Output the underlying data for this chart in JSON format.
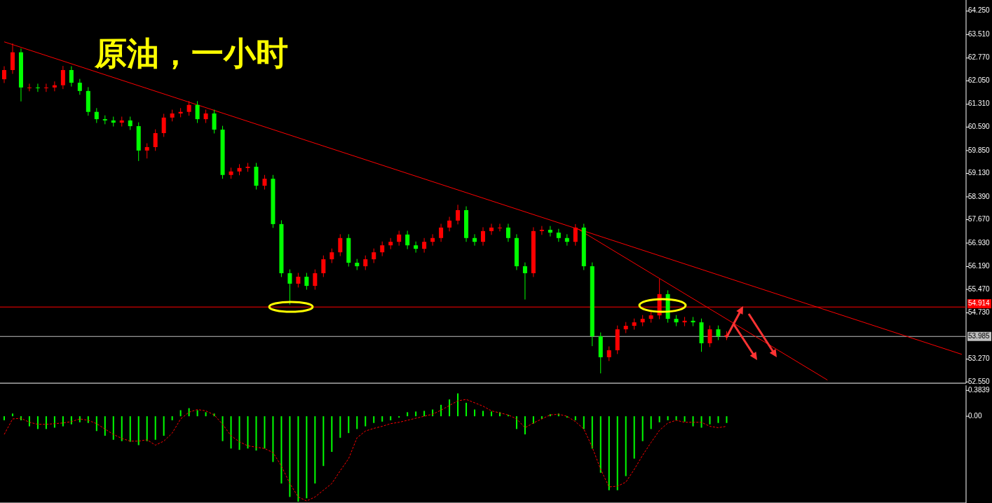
{
  "chart_data": [
    {
      "type": "candlestick",
      "title": "原油，一小时",
      "categories": [
        null,
        null,
        null,
        null,
        null,
        null,
        null,
        null,
        null,
        null,
        null,
        null,
        null,
        null,
        null,
        null,
        null,
        null,
        null,
        null,
        null,
        null,
        null,
        null,
        null,
        null,
        null,
        null,
        null,
        null,
        null,
        null,
        null,
        null,
        null,
        null,
        null,
        null,
        null,
        null,
        null,
        null,
        null,
        null,
        null,
        null,
        null,
        null,
        null,
        null,
        null,
        null,
        null,
        null,
        null,
        null,
        null,
        null,
        null,
        null,
        null,
        null,
        null,
        null,
        null,
        null,
        null,
        null,
        null,
        null,
        null,
        null,
        null,
        null,
        null,
        null,
        null,
        null,
        null,
        null,
        null,
        null,
        null,
        null,
        null,
        null,
        null,
        null,
        null,
        null,
        null,
        null,
        null,
        null,
        null,
        null,
        null,
        null,
        null,
        null,
        null,
        null,
        null,
        null,
        null,
        null,
        null,
        null,
        null,
        null,
        null,
        null,
        null,
        null,
        null
      ],
      "colors": [
        "#ff0000",
        "#ff0000",
        "#00ff00",
        "#ff0000",
        "#00ff00",
        "#ff0000",
        "#ff0000",
        "#ff0000",
        "#00ff00",
        "#00ff00",
        "#00ff00",
        "#00ff00",
        "#00ff00",
        "#00ff00",
        "#ff0000",
        "#00ff00",
        "#00ff00",
        "#ff0000",
        "#ff0000",
        "#ff0000",
        "#ff0000",
        "#ff0000",
        "#ff0000",
        "#00ff00",
        "#ff0000",
        "#00ff00",
        "#00ff00",
        "#ff0000",
        "#ff0000",
        "#ff0000",
        "#00ff00",
        "#ff0000",
        "#00ff00",
        "#00ff00",
        "#00ff00",
        "#ff0000",
        "#00ff00",
        "#ff0000",
        "#ff0000",
        "#ff0000",
        "#ff0000",
        "#00ff00",
        "#00ff00",
        "#ff0000",
        "#ff0000",
        "#ff0000",
        "#ff0000",
        "#ff0000",
        "#00ff00",
        "#00ff00",
        "#ff0000",
        "#ff0000",
        "#ff0000",
        "#ff0000",
        "#ff0000",
        "#00ff00",
        "#00ff00",
        "#ff0000",
        "#ff0000",
        "#ff0000",
        "#00ff00",
        "#00ff00",
        "#00ff00",
        "#ff0000",
        "#ff0000",
        "#00ff00",
        "#00ff00",
        "#00ff00",
        "#ff0000",
        "#00ff00",
        "#00ff00",
        "#00ff00",
        "#ff0000",
        "#ff0000",
        "#ff0000",
        "#ff0000",
        "#ff0000",
        "#ff0000",
        "#ff0000",
        "#00ff00",
        "#00ff00",
        "#ff0000",
        "#00ff00",
        "#00ff00",
        "#ff0000",
        "#00ff00",
        "#ff0000",
        null,
        null,
        null,
        null,
        null,
        null,
        null,
        null,
        null,
        null,
        null,
        null,
        null,
        null,
        null,
        null,
        null,
        null,
        null,
        null,
        null,
        null,
        null,
        null,
        null,
        null,
        null,
        null
      ],
      "ohlc": [
        [
          62.1,
          62.51,
          61.98,
          62.39
        ],
        [
          62.39,
          63.23,
          62.27,
          62.95
        ],
        [
          62.95,
          63.07,
          61.4,
          61.84
        ],
        [
          61.84,
          61.96,
          61.72,
          61.84
        ],
        [
          61.84,
          61.96,
          61.7,
          61.82
        ],
        [
          61.82,
          61.96,
          61.7,
          61.84
        ],
        [
          61.84,
          62.03,
          61.72,
          61.91
        ],
        [
          61.91,
          62.52,
          61.79,
          62.39
        ],
        [
          62.39,
          62.51,
          61.87,
          61.99
        ],
        [
          61.99,
          62.11,
          61.61,
          61.73
        ],
        [
          61.73,
          61.85,
          60.95,
          61.07
        ],
        [
          61.07,
          61.19,
          60.72,
          60.84
        ],
        [
          60.84,
          60.96,
          60.68,
          60.8
        ],
        [
          60.8,
          60.92,
          60.61,
          60.73
        ],
        [
          60.73,
          60.92,
          60.61,
          60.8
        ],
        [
          60.8,
          60.92,
          60.5,
          60.62
        ],
        [
          60.62,
          60.74,
          59.52,
          59.85
        ],
        [
          59.85,
          60.08,
          59.6,
          59.96
        ],
        [
          59.96,
          60.52,
          59.84,
          60.4
        ],
        [
          60.4,
          61.01,
          60.28,
          60.89
        ],
        [
          60.89,
          61.14,
          60.77,
          61.02
        ],
        [
          61.02,
          61.19,
          60.9,
          61.07
        ],
        [
          61.07,
          61.41,
          60.95,
          61.29
        ],
        [
          61.29,
          61.41,
          60.72,
          60.84
        ],
        [
          60.84,
          61.14,
          60.72,
          61.02
        ],
        [
          61.02,
          61.14,
          60.39,
          60.51
        ],
        [
          60.51,
          60.63,
          58.96,
          59.08
        ],
        [
          59.08,
          59.31,
          58.96,
          59.19
        ],
        [
          59.19,
          59.42,
          59.07,
          59.3
        ],
        [
          59.3,
          59.46,
          59.18,
          59.34
        ],
        [
          59.34,
          59.46,
          58.62,
          58.74
        ],
        [
          58.74,
          59.08,
          58.62,
          58.96
        ],
        [
          58.96,
          59.08,
          57.41,
          57.53
        ],
        [
          57.53,
          57.65,
          55.86,
          55.98
        ],
        [
          55.98,
          56.1,
          54.99,
          55.65
        ],
        [
          55.65,
          55.99,
          55.53,
          55.87
        ],
        [
          55.87,
          55.99,
          55.46,
          55.58
        ],
        [
          55.58,
          56.1,
          55.46,
          55.98
        ],
        [
          55.98,
          56.54,
          55.86,
          56.42
        ],
        [
          56.42,
          56.76,
          56.3,
          56.64
        ],
        [
          56.64,
          57.21,
          56.52,
          57.09
        ],
        [
          57.09,
          57.21,
          56.19,
          56.31
        ],
        [
          56.31,
          56.43,
          56.08,
          56.2
        ],
        [
          56.2,
          56.54,
          56.08,
          56.42
        ],
        [
          56.42,
          56.76,
          56.3,
          56.64
        ],
        [
          56.64,
          56.98,
          56.52,
          56.86
        ],
        [
          56.86,
          57.09,
          56.74,
          56.97
        ],
        [
          56.97,
          57.32,
          56.85,
          57.2
        ],
        [
          57.2,
          57.32,
          56.74,
          56.86
        ],
        [
          56.86,
          56.98,
          56.63,
          56.75
        ],
        [
          56.75,
          57.09,
          56.63,
          56.97
        ],
        [
          56.97,
          57.21,
          56.85,
          57.09
        ],
        [
          57.09,
          57.54,
          56.97,
          57.42
        ],
        [
          57.42,
          57.76,
          57.3,
          57.64
        ],
        [
          57.64,
          58.14,
          57.52,
          57.97
        ],
        [
          57.97,
          58.09,
          56.97,
          57.09
        ],
        [
          57.09,
          57.21,
          56.85,
          56.97
        ],
        [
          56.97,
          57.43,
          56.85,
          57.31
        ],
        [
          57.31,
          57.54,
          57.19,
          57.42
        ],
        [
          57.42,
          57.54,
          57.3,
          57.42
        ],
        [
          57.42,
          57.54,
          56.97,
          57.09
        ],
        [
          57.09,
          57.21,
          56.08,
          56.2
        ],
        [
          56.2,
          56.32,
          55.15,
          55.98
        ],
        [
          55.98,
          57.43,
          55.86,
          57.31
        ],
        [
          57.31,
          57.47,
          57.19,
          57.35
        ],
        [
          57.35,
          57.47,
          57.14,
          57.26
        ],
        [
          57.26,
          57.38,
          56.97,
          57.09
        ],
        [
          57.09,
          57.21,
          56.85,
          56.97
        ],
        [
          56.97,
          57.53,
          56.85,
          57.42
        ],
        [
          57.42,
          57.54,
          56.08,
          56.2
        ],
        [
          56.2,
          56.32,
          53.68,
          53.99
        ],
        [
          53.99,
          54.11,
          52.82,
          53.33
        ],
        [
          53.33,
          53.67,
          53.21,
          53.55
        ],
        [
          53.55,
          54.33,
          53.43,
          54.21
        ],
        [
          54.21,
          54.44,
          54.09,
          54.32
        ],
        [
          54.32,
          54.55,
          54.2,
          54.43
        ],
        [
          54.43,
          54.66,
          54.31,
          54.54
        ],
        [
          54.54,
          54.77,
          54.42,
          54.65
        ],
        [
          54.65,
          55.8,
          54.53,
          55.32
        ],
        [
          55.32,
          55.44,
          54.42,
          54.54
        ],
        [
          54.54,
          54.66,
          54.31,
          54.43
        ],
        [
          54.43,
          54.6,
          54.31,
          54.48
        ],
        [
          54.48,
          54.6,
          54.31,
          54.43
        ],
        [
          54.43,
          54.55,
          53.5,
          53.77
        ],
        [
          53.77,
          54.33,
          53.65,
          54.21
        ],
        [
          54.21,
          54.33,
          53.87,
          53.99
        ],
        [
          53.99,
          54.15,
          53.87,
          54.03
        ],
        null,
        null,
        null,
        null,
        null,
        null,
        null,
        null,
        null,
        null,
        null,
        null,
        null,
        null,
        null,
        null,
        null,
        null,
        null,
        null,
        null,
        null,
        null,
        null,
        null,
        null,
        null,
        null
      ],
      "series": [
        {
          "type": "line",
          "color": "#ff0000",
          "values": [
            63.28,
            null,
            null,
            null,
            null,
            null,
            null,
            null,
            null,
            null,
            null,
            null,
            null,
            null,
            null,
            null,
            null,
            null,
            null,
            null,
            null,
            null,
            null,
            null,
            null,
            null,
            null,
            null,
            null,
            null,
            null,
            null,
            null,
            null,
            null,
            null,
            null,
            null,
            null,
            null,
            null,
            null,
            null,
            null,
            null,
            null,
            null,
            null,
            null,
            null,
            null,
            null,
            null,
            null,
            null,
            null,
            null,
            null,
            null,
            null,
            null,
            null,
            null,
            null,
            null,
            null,
            null,
            null,
            null,
            null,
            null,
            null,
            null,
            null,
            null,
            null,
            null,
            null,
            null,
            null,
            null,
            null,
            null,
            null,
            null,
            null,
            null,
            null,
            null,
            null,
            null,
            null,
            null,
            null,
            null,
            null,
            null,
            null,
            null,
            null,
            null,
            null,
            null,
            null,
            null,
            null,
            null,
            null,
            null,
            null,
            null,
            null,
            null,
            null,
            53.42
          ]
        },
        {
          "type": "line",
          "color": "#ff0000",
          "values": [
            null,
            null,
            null,
            null,
            null,
            null,
            null,
            null,
            null,
            null,
            null,
            null,
            null,
            null,
            null,
            null,
            null,
            null,
            null,
            null,
            null,
            null,
            null,
            null,
            null,
            null,
            null,
            null,
            null,
            null,
            null,
            null,
            null,
            null,
            null,
            null,
            null,
            null,
            null,
            null,
            null,
            null,
            null,
            null,
            null,
            null,
            null,
            null,
            null,
            null,
            null,
            null,
            null,
            null,
            null,
            null,
            null,
            null,
            null,
            null,
            null,
            null,
            null,
            null,
            null,
            null,
            null,
            null,
            57.42,
            null,
            null,
            null,
            null,
            null,
            null,
            null,
            null,
            null,
            null,
            null,
            null,
            null,
            null,
            null,
            null,
            null,
            null,
            null,
            null,
            null,
            null,
            null,
            null,
            null,
            null,
            null,
            null,
            null,
            52.61,
            null,
            null,
            null,
            null,
            null,
            null,
            null,
            null,
            null,
            null,
            null,
            null,
            null,
            null,
            null,
            null
          ]
        }
      ],
      "ylim": [
        52.51,
        64.6
      ],
      "yticks": [
        {
          "value": 64.25,
          "label": "64.250"
        },
        {
          "value": 63.51,
          "label": "63.510"
        },
        {
          "value": 62.77,
          "label": "62.770"
        },
        {
          "value": 62.05,
          "label": "62.050"
        },
        {
          "value": 61.31,
          "label": "61.310"
        },
        {
          "value": 60.59,
          "label": "60.590"
        },
        {
          "value": 59.85,
          "label": "59.850"
        },
        {
          "value": 59.13,
          "label": "59.130"
        },
        {
          "value": 58.39,
          "label": "58.390"
        },
        {
          "value": 57.67,
          "label": "57.670"
        },
        {
          "value": 56.93,
          "label": "56.930"
        },
        {
          "value": 56.19,
          "label": "56.190"
        },
        {
          "value": 55.47,
          "label": "55.470"
        },
        {
          "value": 54.73,
          "label": "54.730"
        },
        {
          "value": 53.27,
          "label": "53.270"
        },
        {
          "value": 52.55,
          "label": "52.550"
        }
      ],
      "ref_lines": [
        {
          "axis": "y",
          "value": 54.914,
          "label": "54.914",
          "color": "#ff0000"
        },
        {
          "axis": "y",
          "value": 53.985,
          "label": "53.985",
          "color": "#c0c0c0"
        }
      ]
    },
    {
      "type": "bar",
      "categories": [
        null,
        null,
        null,
        null,
        null,
        null,
        null,
        null,
        null,
        null,
        null,
        null,
        null,
        null,
        null,
        null,
        null,
        null,
        null,
        null,
        null,
        null,
        null,
        null,
        null,
        null,
        null,
        null,
        null,
        null,
        null,
        null,
        null,
        null,
        null,
        null,
        null,
        null,
        null,
        null,
        null,
        null,
        null,
        null,
        null,
        null,
        null,
        null,
        null,
        null,
        null,
        null,
        null,
        null,
        null,
        null,
        null,
        null,
        null,
        null,
        null,
        null,
        null,
        null,
        null,
        null,
        null,
        null,
        null,
        null,
        null,
        null,
        null,
        null,
        null,
        null,
        null,
        null,
        null,
        null,
        null,
        null,
        null,
        null,
        null,
        null,
        null,
        null,
        null,
        null,
        null,
        null,
        null,
        null,
        null,
        null,
        null,
        null,
        null,
        null,
        null,
        null,
        null,
        null,
        null,
        null,
        null,
        null,
        null,
        null,
        null,
        null,
        null,
        null,
        null
      ],
      "series": [
        {
          "type": "bar",
          "color": "#00ff00",
          "values": [
            -0.06,
            0.04,
            -0.06,
            -0.15,
            -0.19,
            -0.19,
            -0.17,
            -0.15,
            -0.12,
            -0.09,
            -0.1,
            -0.22,
            -0.29,
            -0.35,
            -0.37,
            -0.38,
            -0.43,
            -0.37,
            -0.35,
            -0.29,
            -0.06,
            0.09,
            0.12,
            0.09,
            0.06,
            0.04,
            -0.37,
            -0.48,
            -0.5,
            -0.48,
            -0.51,
            -0.48,
            -0.68,
            -1.0,
            -1.2,
            -1.27,
            -1.22,
            -1.0,
            -0.74,
            -0.53,
            -0.32,
            -0.25,
            -0.19,
            -0.15,
            -0.1,
            -0.08,
            -0.06,
            -0.02,
            0.06,
            0.07,
            0.08,
            0.1,
            0.17,
            0.25,
            0.34,
            0.2,
            0.1,
            0.08,
            0.07,
            0.06,
            0.02,
            -0.19,
            -0.27,
            -0.11,
            -0.04,
            0.03,
            0.04,
            -0.02,
            -0.06,
            -0.19,
            -0.48,
            -0.84,
            -1.1,
            -1.1,
            -0.89,
            -0.63,
            -0.37,
            -0.19,
            -0.09,
            -0.06,
            -0.06,
            -0.08,
            -0.15,
            -0.17,
            -0.12,
            -0.1,
            -0.1,
            null,
            null,
            null,
            null,
            null,
            null,
            null,
            null,
            null,
            null,
            null,
            null,
            null,
            null,
            null,
            null,
            null,
            null,
            null,
            null,
            null,
            null,
            null,
            null,
            null,
            null,
            null,
            null
          ]
        },
        {
          "type": "line",
          "color": "#ff0000",
          "line_style": "dashed",
          "values": [
            -0.27,
            -0.04,
            -0.03,
            -0.09,
            -0.12,
            -0.12,
            -0.11,
            -0.1,
            -0.08,
            -0.04,
            -0.06,
            -0.11,
            -0.19,
            -0.27,
            -0.33,
            -0.37,
            -0.37,
            -0.35,
            -0.43,
            -0.37,
            -0.25,
            -0.04,
            0.06,
            0.1,
            0.08,
            0.02,
            -0.12,
            -0.29,
            -0.38,
            -0.44,
            -0.46,
            -0.48,
            -0.54,
            -0.74,
            -1.0,
            -1.2,
            -1.26,
            -1.2,
            -1.1,
            -1.0,
            -0.81,
            -0.63,
            -0.32,
            -0.22,
            -0.18,
            -0.15,
            -0.11,
            -0.09,
            -0.06,
            -0.03,
            0.0,
            0.03,
            0.09,
            0.16,
            0.23,
            0.25,
            0.2,
            0.15,
            0.08,
            0.05,
            0.02,
            -0.04,
            -0.17,
            -0.1,
            -0.04,
            0.02,
            0.03,
            0.0,
            -0.08,
            -0.19,
            -0.46,
            -0.79,
            -1.05,
            -1.04,
            -0.98,
            -0.79,
            -0.58,
            -0.39,
            -0.21,
            -0.1,
            -0.06,
            -0.09,
            -0.09,
            -0.09,
            -0.15,
            -0.17,
            -0.15,
            null,
            null,
            null,
            null,
            null,
            null,
            null,
            null,
            null,
            null,
            null,
            null,
            null,
            null,
            null,
            null,
            null,
            null,
            null,
            null,
            null,
            null,
            null,
            null,
            null,
            null,
            null,
            null
          ]
        }
      ],
      "ylim": [
        -1.29,
        0.46
      ],
      "yticks": [
        0.3839,
        {
          "value": 0,
          "label": "0.00"
        }
      ]
    }
  ]
}
